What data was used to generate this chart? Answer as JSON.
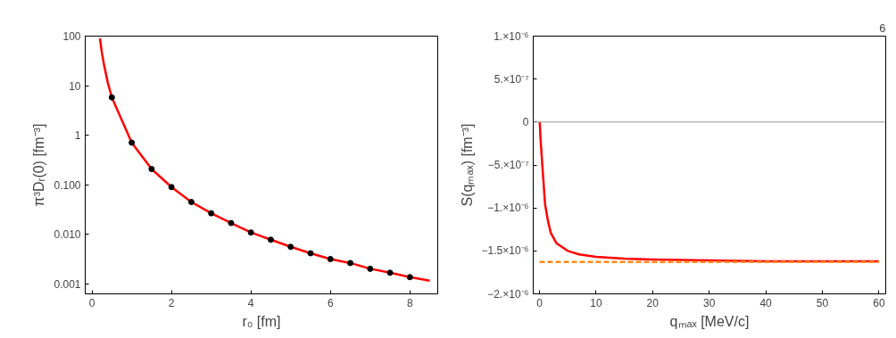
{
  "chart_data": [
    {
      "type": "line",
      "xlabel": "r₀ [fm]",
      "ylabel": "π³Dᵣ(0) [fm⁻³]",
      "log": "y",
      "grid": false,
      "xlim": [
        -0.17,
        8.7
      ],
      "ylim": [
        0.00063,
        100
      ],
      "xticks": [
        0,
        2,
        4,
        6,
        8
      ],
      "yticks": [
        {
          "value": 0.001,
          "label": "0.001"
        },
        {
          "value": 0.01,
          "label": "0.010"
        },
        {
          "value": 0.1,
          "label": "0.100"
        },
        1,
        10,
        100
      ],
      "series": [
        {
          "color": "#ff0000",
          "marker": "none",
          "line_style": "solid",
          "x": [
            0.2,
            0.25,
            0.3,
            0.4,
            0.5,
            1,
            1.5,
            2,
            2.5,
            3,
            3.5,
            4,
            4.5,
            5,
            5.5,
            6,
            6.5,
            7,
            7.5,
            8,
            8.5
          ],
          "values": [
            90,
            46,
            27,
            11.3,
            5.8,
            0.71,
            0.208,
            0.09,
            0.045,
            0.0266,
            0.0169,
            0.0109,
            0.0078,
            0.0056,
            0.00415,
            0.00318,
            0.00264,
            0.00202,
            0.00168,
            0.00137,
            0.00116
          ]
        },
        {
          "type": "scatter",
          "color": "#000000",
          "marker": "circle",
          "x": [
            0.5,
            1,
            1.5,
            2,
            2.5,
            3,
            3.5,
            4,
            4.5,
            5,
            5.5,
            6,
            6.5,
            7,
            7.5,
            8
          ],
          "values": [
            5.8,
            0.71,
            0.208,
            0.09,
            0.045,
            0.0266,
            0.0169,
            0.0109,
            0.0078,
            0.0056,
            0.00415,
            0.00318,
            0.00264,
            0.00202,
            0.00168,
            0.00137
          ]
        }
      ]
    },
    {
      "type": "line",
      "xlabel": "qₘₐₓ [MeV/c]",
      "ylabel": "S(qₘₐₓ) [fm⁻³]",
      "grid": false,
      "annotations": [
        "6"
      ],
      "xlim": [
        -1.1,
        61.2
      ],
      "ylim": [
        -2e-06,
        1e-06
      ],
      "xticks": [
        0,
        10,
        20,
        30,
        40,
        50,
        60
      ],
      "yticks": [
        {
          "value": -2e-06,
          "label": "−2.×10⁻⁶"
        },
        {
          "value": -1.5e-06,
          "label": "−1.5×10⁻⁶"
        },
        {
          "value": -1e-06,
          "label": "−1.×10⁻⁶"
        },
        {
          "value": -5e-07,
          "label": "−5.×10⁻⁷"
        },
        0,
        {
          "value": 5e-07,
          "label": "5.×10⁻⁷"
        },
        {
          "value": 1e-06,
          "label": "1.×10⁻⁶"
        }
      ],
      "ref_lines": [
        {
          "axis": "y",
          "value": 0,
          "color": "#999999",
          "line_style": "solid"
        }
      ],
      "series": [
        {
          "color": "#ff0000",
          "marker": "none",
          "line_style": "solid",
          "x": [
            0.05,
            0.2,
            0.5,
            1,
            1.5,
            2,
            3,
            5,
            7,
            10,
            15,
            20,
            30,
            40,
            60
          ],
          "values": [
            0,
            -2e-07,
            -5e-07,
            -9.6e-07,
            -1.15e-06,
            -1.29e-06,
            -1.41e-06,
            -1.5e-06,
            -1.54e-06,
            -1.57e-06,
            -1.59e-06,
            -1.6e-06,
            -1.61e-06,
            -1.62e-06,
            -1.62e-06
          ]
        },
        {
          "color": "#ff8c1a",
          "marker": "none",
          "line_style": "dashed",
          "x": [
            0,
            60
          ],
          "values": [
            -1.63e-06,
            -1.63e-06
          ]
        }
      ]
    }
  ]
}
